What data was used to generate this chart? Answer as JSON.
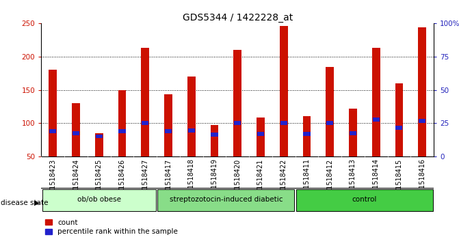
{
  "title": "GDS5344 / 1422228_at",
  "samples": [
    "GSM1518423",
    "GSM1518424",
    "GSM1518425",
    "GSM1518426",
    "GSM1518427",
    "GSM1518417",
    "GSM1518418",
    "GSM1518419",
    "GSM1518420",
    "GSM1518421",
    "GSM1518422",
    "GSM1518411",
    "GSM1518412",
    "GSM1518413",
    "GSM1518414",
    "GSM1518415",
    "GSM1518416"
  ],
  "counts": [
    180,
    130,
    85,
    150,
    213,
    143,
    170,
    97,
    210,
    108,
    246,
    110,
    185,
    122,
    213,
    160,
    244
  ],
  "percentile_vals": [
    88,
    85,
    80,
    88,
    100,
    88,
    89,
    83,
    100,
    84,
    100,
    84,
    100,
    85,
    105,
    93,
    103
  ],
  "groups": [
    {
      "label": "ob/ob obese",
      "start": 0,
      "end": 5
    },
    {
      "label": "streptozotocin-induced diabetic",
      "start": 5,
      "end": 11
    },
    {
      "label": "control",
      "start": 11,
      "end": 17
    }
  ],
  "group_colors": [
    "#ccffcc",
    "#88dd88",
    "#44cc44"
  ],
  "bar_color": "#cc1100",
  "blue_color": "#2222cc",
  "sample_bg_color": "#cccccc",
  "ylim_left": [
    50,
    250
  ],
  "ylim_right": [
    0,
    100
  ],
  "yticks_left": [
    50,
    100,
    150,
    200,
    250
  ],
  "yticks_right": [
    0,
    25,
    50,
    75,
    100
  ],
  "left_tick_color": "#cc1100",
  "right_tick_color": "#2222bb",
  "title_fontsize": 10,
  "tick_fontsize": 7,
  "bar_width": 0.35
}
